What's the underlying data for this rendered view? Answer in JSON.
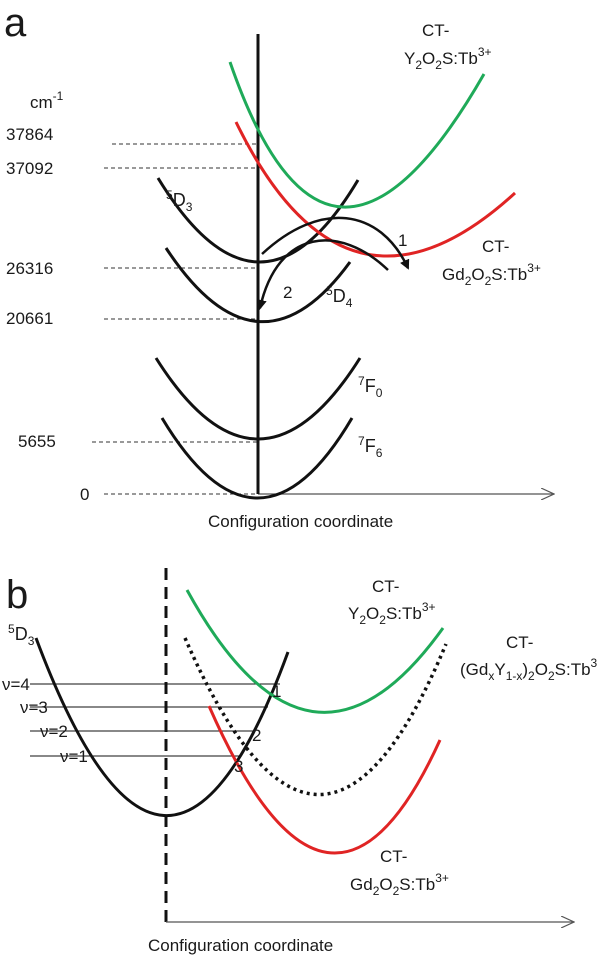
{
  "colors": {
    "black_curve": "#111111",
    "green_curve": "#1faa59",
    "red_curve": "#e02424",
    "guide_line": "#333333",
    "axis": "#555555"
  },
  "panel_a": {
    "letter": "a",
    "unit_label": "cm",
    "unit_sup": "-1",
    "ticks": [
      "37864",
      "37092",
      "26316",
      "20661",
      "5655",
      "0"
    ],
    "states": {
      "d3": {
        "sup": "5",
        "main": "D",
        "sub": "3"
      },
      "d4": {
        "sup": "5",
        "main": "D",
        "sub": "4"
      },
      "f0": {
        "sup": "7",
        "main": "F",
        "sub": "0"
      },
      "f6": {
        "sup": "7",
        "main": "F",
        "sub": "6"
      }
    },
    "ct_y": {
      "line1": "CT-",
      "host_y": "Y",
      "host_o": "O",
      "host_s": "S:Tb",
      "sub2": "2",
      "charge": "3+"
    },
    "ct_gd": {
      "line1": "CT-",
      "host_gd": "Gd",
      "host_o": "O",
      "host_s": "S:Tb",
      "sub2": "2",
      "charge": "3+"
    },
    "arrows": [
      "1",
      "2"
    ],
    "x_axis_label": "Configuration coordinate"
  },
  "panel_b": {
    "letter": "b",
    "state": {
      "sup": "5",
      "main": "D",
      "sub": "3"
    },
    "levels": [
      "ν=4",
      "ν=3",
      "ν=2",
      "ν=1"
    ],
    "crossings": [
      "1",
      "2",
      "3"
    ],
    "ct_y": {
      "line1": "CT-",
      "host_y": "Y",
      "host_o": "O",
      "host_s": "S:Tb",
      "sub2": "2",
      "charge": "3+"
    },
    "ct_mix": {
      "line1": "CT-",
      "open": "(Gd",
      "x": "x",
      "y": "Y",
      "one_minus_x": "1-x",
      "close": ")",
      "o": "O",
      "s": "S:Tb",
      "sub2": "2",
      "charge": "3"
    },
    "ct_gd": {
      "line1": "CT-",
      "host_gd": "Gd",
      "host_o": "O",
      "host_s": "S:Tb",
      "sub2": "2",
      "charge": "3+"
    },
    "x_axis_label": "Configuration coordinate"
  }
}
